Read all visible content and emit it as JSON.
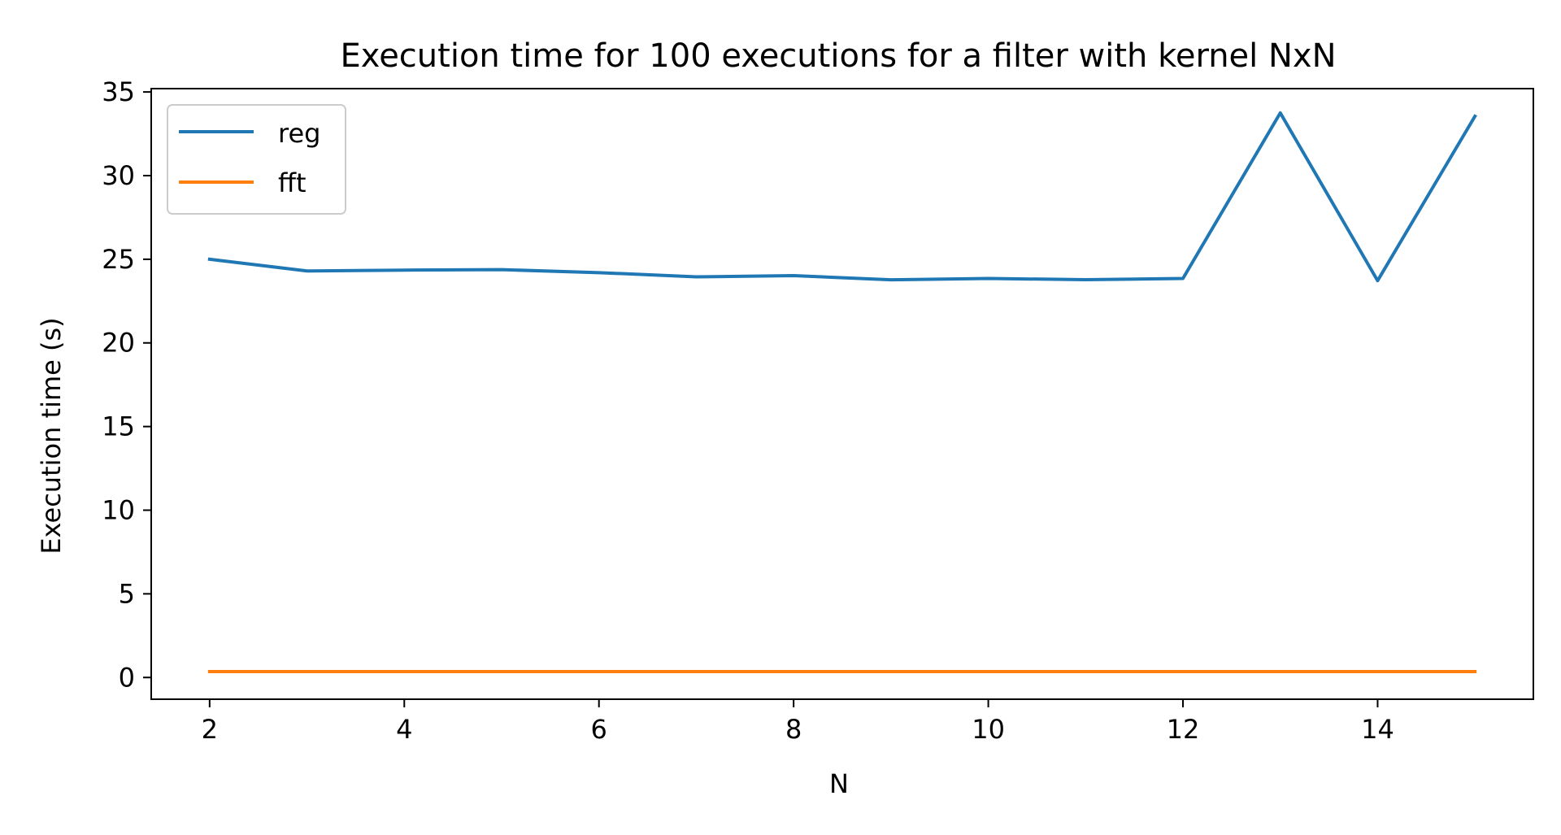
{
  "chart_data": {
    "type": "line",
    "title": "Execution time for 100 executions for a filter with kernel NxN",
    "xlabel": "N",
    "ylabel": "Execution time (s)",
    "xlim": [
      1.4,
      15.6
    ],
    "ylim": [
      -1.3,
      35.2
    ],
    "xticks": [
      2,
      4,
      6,
      8,
      10,
      12,
      14
    ],
    "yticks": [
      0,
      5,
      10,
      15,
      20,
      25,
      30,
      35
    ],
    "grid": false,
    "legend_position": "top-left",
    "x": [
      2,
      3,
      4,
      5,
      6,
      7,
      8,
      9,
      10,
      11,
      12,
      13,
      14,
      15
    ],
    "series": [
      {
        "name": "reg",
        "color": "#1f77b4",
        "values": [
          25.0,
          24.3,
          24.35,
          24.38,
          24.2,
          23.95,
          24.02,
          23.77,
          23.85,
          23.78,
          23.85,
          33.75,
          23.72,
          33.55
        ]
      },
      {
        "name": "fft",
        "color": "#ff7f0e",
        "values": [
          0.35,
          0.35,
          0.35,
          0.35,
          0.35,
          0.35,
          0.35,
          0.35,
          0.35,
          0.35,
          0.35,
          0.35,
          0.35,
          0.35
        ]
      }
    ]
  }
}
